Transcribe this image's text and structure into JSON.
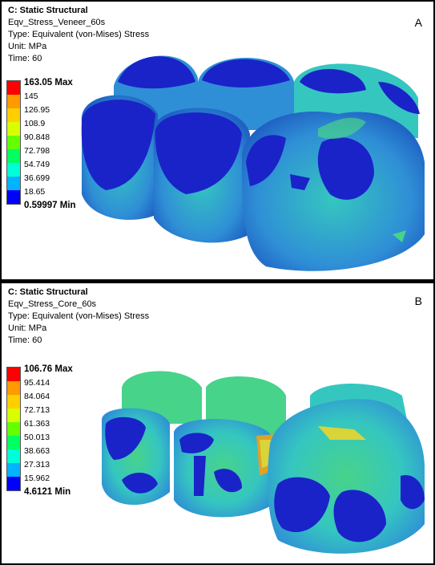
{
  "panels": [
    {
      "id": "A",
      "title": "C: Static Structural",
      "result_name": "Eqv_Stress_Veneer_60s",
      "type": "Type: Equivalent (von-Mises) Stress",
      "unit": "Unit: MPa",
      "time": "Time: 60",
      "label": "A",
      "legend": [
        "163.05 Max",
        "145",
        "126.95",
        "108.9",
        "90.848",
        "72.798",
        "54.749",
        "36.699",
        "18.65",
        "0.59997 Min"
      ]
    },
    {
      "id": "B",
      "title": "C: Static Structural",
      "result_name": "Eqv_Stress_Core_60s",
      "type": "Type: Equivalent (von-Mises) Stress",
      "unit": "Unit: MPa",
      "time": "Time: 60",
      "label": "B",
      "legend": [
        "106.76 Max",
        "95.414",
        "84.064",
        "72.713",
        "61.363",
        "50.013",
        "38.663",
        "27.313",
        "15.962",
        "4.6121 Min"
      ]
    }
  ],
  "colors": {
    "legend_bands": [
      "#ff0000",
      "#ff9a00",
      "#ffcf00",
      "#d8ff00",
      "#64ff00",
      "#00ff61",
      "#00ffd9",
      "#00b4ff",
      "#0000ff"
    ],
    "mesh_low": "#1a23c8",
    "mesh_mid": "#2f8fd6",
    "mesh_cyan": "#35c6c0",
    "mesh_green": "#47d38a",
    "mesh_yellow": "#d8d43a",
    "mesh_orange": "#e0a12a"
  }
}
